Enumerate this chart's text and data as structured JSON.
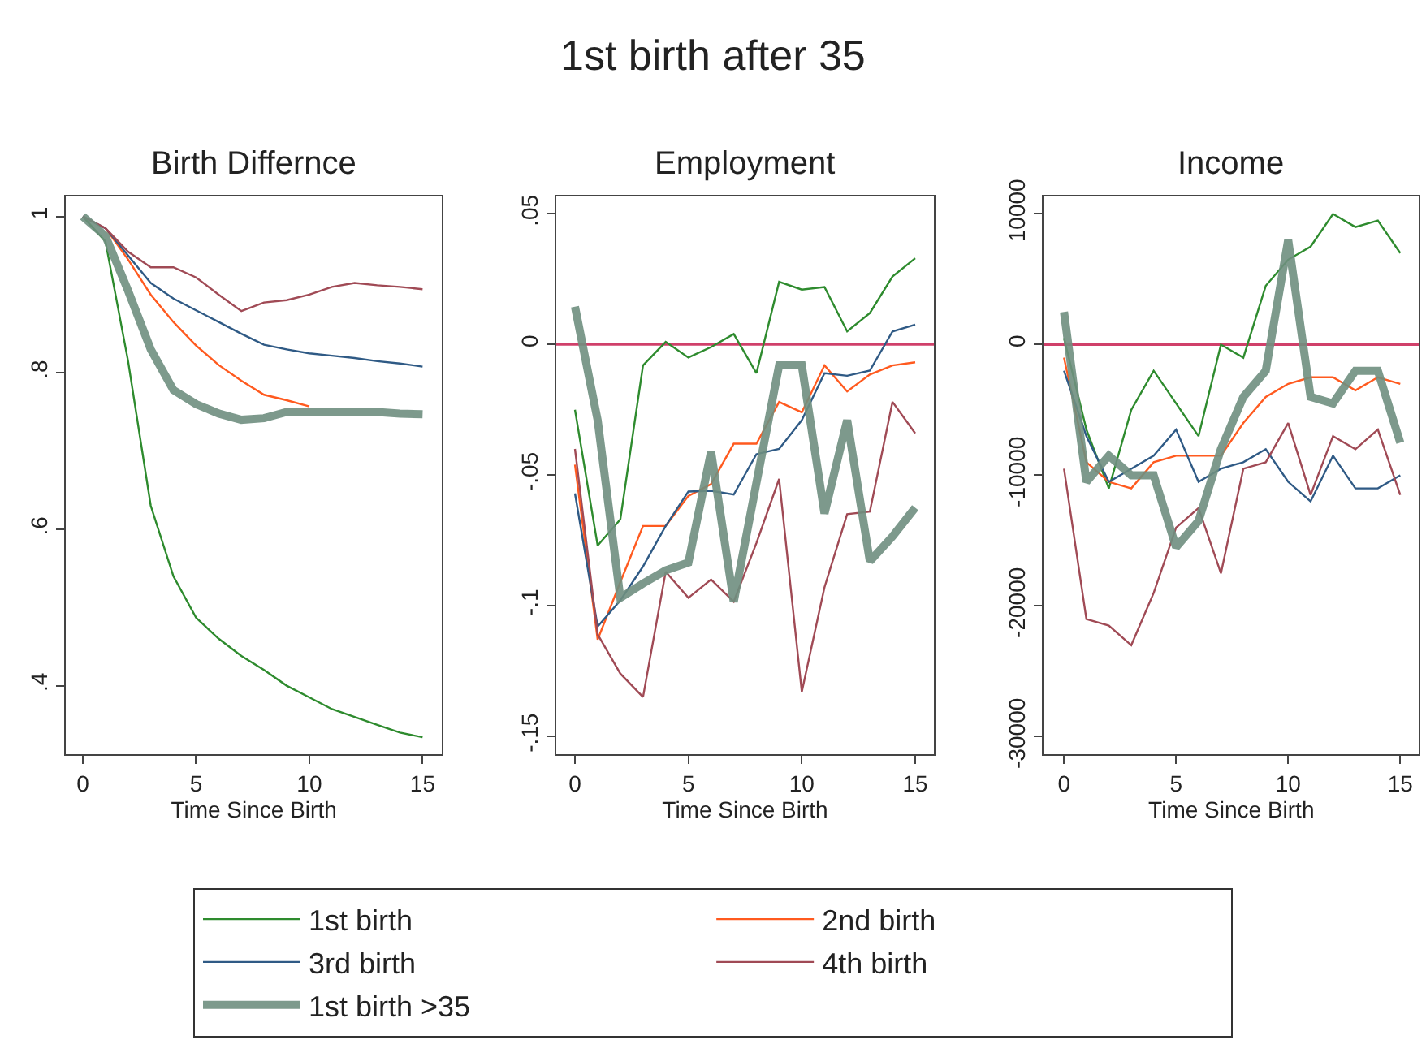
{
  "chart_data": [
    {
      "type": "line",
      "title": "Birth Differnce",
      "annotations": [
        "1st birth after 35"
      ],
      "xlabel": "Time Since Birth",
      "x": [
        0,
        1,
        2,
        3,
        4,
        5,
        6,
        7,
        8,
        9,
        10,
        11,
        12,
        13,
        14,
        15
      ],
      "xlim": [
        -0.76,
        15.86
      ],
      "xticks": [
        0,
        5,
        10,
        15
      ],
      "ylim": [
        0.312,
        1.026
      ],
      "yticks": [
        {
          "value": 0.4,
          "label": ".4"
        },
        {
          "value": 0.6,
          "label": ".6"
        },
        {
          "value": 0.8,
          "label": ".8"
        },
        1
      ],
      "grid": false,
      "legend": "bottom",
      "marker": "none",
      "line_style": "solid",
      "series": [
        {
          "name": "1st birth",
          "color": "#2e8b2e",
          "values": [
            1.0,
            0.968,
            0.815,
            0.63,
            0.54,
            0.487,
            0.46,
            0.438,
            0.42,
            0.4,
            0.385,
            0.37,
            0.36,
            0.35,
            0.34,
            0.334
          ]
        },
        {
          "name": "2nd birth",
          "color": "#ff5a1f",
          "values": [
            null,
            0.985,
            0.945,
            0.9,
            0.865,
            0.835,
            0.81,
            0.79,
            0.772,
            0.765,
            0.757,
            null,
            null,
            null,
            null,
            null
          ]
        },
        {
          "name": "3rd birth",
          "color": "#2f5a85",
          "values": [
            1.0,
            0.985,
            0.95,
            0.915,
            0.895,
            0.88,
            0.865,
            0.85,
            0.836,
            0.83,
            0.825,
            0.822,
            0.819,
            0.815,
            0.812,
            0.808
          ]
        },
        {
          "name": "4th birth",
          "color": "#a04a55",
          "values": [
            1.0,
            0.985,
            0.955,
            0.935,
            0.935,
            0.922,
            0.9,
            0.879,
            0.89,
            0.893,
            0.9,
            0.91,
            0.915,
            0.912,
            0.91,
            0.907
          ]
        },
        {
          "name": "1st birth >35",
          "color": "#6f8f80",
          "values": [
            1.0,
            0.975,
            0.905,
            0.83,
            0.778,
            0.76,
            0.748,
            0.74,
            0.742,
            0.75,
            0.75,
            0.75,
            0.75,
            0.75,
            0.748,
            0.747
          ]
        }
      ]
    },
    {
      "type": "line",
      "title": "Employment",
      "xlabel": "Time Since Birth",
      "x": [
        0,
        1,
        2,
        3,
        4,
        5,
        6,
        7,
        8,
        9,
        10,
        11,
        12,
        13,
        14,
        15
      ],
      "xlim": [
        -0.83,
        15.83
      ],
      "xticks": [
        0,
        5,
        10,
        15
      ],
      "ylim": [
        -0.157,
        0.0568
      ],
      "yticks": [
        {
          "value": -0.15,
          "label": "-.15"
        },
        {
          "value": -0.1,
          "label": "-.1"
        },
        {
          "value": -0.05,
          "label": "-.05"
        },
        0,
        {
          "value": 0.05,
          "label": ".05"
        }
      ],
      "grid": false,
      "legend": false,
      "marker": "none",
      "line_style": "solid",
      "ref_lines": [
        {
          "axis": "y",
          "value": 0,
          "color": "#d0406a"
        }
      ],
      "series": [
        {
          "color": "#2e8b2e",
          "values": [
            -0.025,
            -0.077,
            -0.067,
            -0.008,
            0.001,
            -0.005,
            -0.001,
            0.004,
            -0.011,
            0.024,
            0.021,
            0.022,
            0.005,
            0.012,
            0.026,
            0.033
          ]
        },
        {
          "color": "#ff5a1f",
          "values": [
            -0.046,
            -0.113,
            -0.091,
            -0.0695,
            -0.0695,
            -0.058,
            -0.0535,
            -0.038,
            -0.038,
            -0.022,
            -0.026,
            -0.008,
            -0.018,
            -0.0115,
            -0.008,
            -0.0068
          ]
        },
        {
          "color": "#2f5a85",
          "values": [
            -0.057,
            -0.108,
            -0.098,
            -0.085,
            -0.0695,
            -0.0563,
            -0.056,
            -0.0575,
            -0.042,
            -0.04,
            -0.029,
            -0.011,
            -0.012,
            -0.01,
            0.005,
            0.0076
          ]
        },
        {
          "color": "#a04a55",
          "values": [
            -0.04,
            -0.111,
            -0.126,
            -0.135,
            -0.087,
            -0.097,
            -0.09,
            -0.0985,
            -0.076,
            -0.0515,
            -0.133,
            -0.093,
            -0.065,
            -0.064,
            -0.022,
            -0.034
          ]
        },
        {
          "color": "#6f8f80",
          "values": [
            0.0145,
            -0.029,
            -0.097,
            -0.0915,
            -0.0865,
            -0.0835,
            -0.041,
            -0.0985,
            -0.053,
            -0.008,
            -0.008,
            -0.0647,
            -0.029,
            -0.083,
            -0.0735,
            -0.0625
          ]
        }
      ]
    },
    {
      "type": "line",
      "title": "Income",
      "xlabel": "Time Since Birth",
      "x": [
        0,
        1,
        2,
        3,
        4,
        5,
        6,
        7,
        8,
        9,
        10,
        11,
        12,
        13,
        14,
        15
      ],
      "xlim": [
        -0.9,
        15.83
      ],
      "xticks": [
        0,
        5,
        10,
        15
      ],
      "ylim": [
        -31360,
        11360
      ],
      "yticks": [
        -30000,
        -20000,
        -10000,
        0,
        10000
      ],
      "grid": false,
      "legend": false,
      "marker": "none",
      "line_style": "solid",
      "ref_lines": [
        {
          "axis": "y",
          "value": 0,
          "color": "#d0406a"
        }
      ],
      "series": [
        {
          "color": "#2e8b2e",
          "values": [
            500,
            -6500,
            -11000,
            -5000,
            -2000,
            -4500,
            -7000,
            0,
            -1000,
            4500,
            6500,
            7500,
            10000,
            9000,
            9500,
            7000
          ]
        },
        {
          "color": "#ff5a1f",
          "values": [
            -1000,
            -9000,
            -10500,
            -11000,
            -9000,
            -8500,
            -8500,
            -8500,
            -6000,
            -4000,
            -3000,
            -2500,
            -2500,
            -3500,
            -2500,
            -3000
          ]
        },
        {
          "color": "#2f5a85",
          "values": [
            -2000,
            -7000,
            -10500,
            -9500,
            -8500,
            -6500,
            -10500,
            -9500,
            -9000,
            -8000,
            -10500,
            -12000,
            -8500,
            -11000,
            -11000,
            -10000
          ]
        },
        {
          "color": "#a04a55",
          "values": [
            -9500,
            -21000,
            -21500,
            -23000,
            -19000,
            -14000,
            -12500,
            -17500,
            -9500,
            -9000,
            -6000,
            -11500,
            -7000,
            -8000,
            -6500,
            -11500
          ]
        },
        {
          "color": "#6f8f80",
          "values": [
            2500,
            -10500,
            -8500,
            -10000,
            -10000,
            -15500,
            -13500,
            -8000,
            -4000,
            -2000,
            8000,
            -4000,
            -4500,
            -2000,
            -2000,
            -7500
          ]
        }
      ]
    }
  ]
}
